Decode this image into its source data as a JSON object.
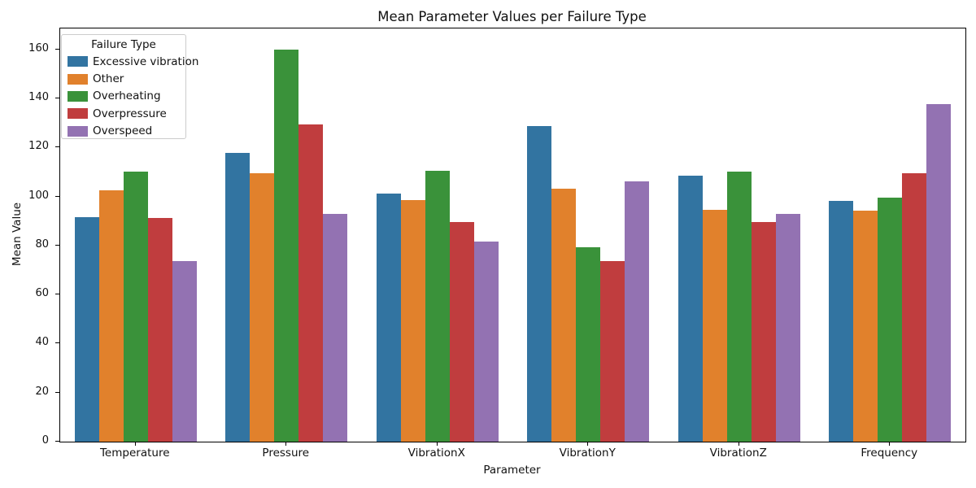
{
  "title": "Mean Parameter Values per Failure Type",
  "x_axis_label": "Parameter",
  "y_axis_label": "Mean Value",
  "legend": {
    "title": "Failure Type",
    "entries": [
      {
        "label": "Excessive vibration",
        "color": "#3274a1"
      },
      {
        "label": "Other",
        "color": "#e1812c"
      },
      {
        "label": "Overheating",
        "color": "#3a923a"
      },
      {
        "label": "Overpressure",
        "color": "#c03d3e"
      },
      {
        "label": "Overspeed",
        "color": "#9372b2"
      }
    ]
  },
  "chart_data": {
    "type": "bar",
    "title": "Mean Parameter Values per Failure Type",
    "xlabel": "Parameter",
    "ylabel": "Mean Value",
    "categories": [
      "Temperature",
      "Pressure",
      "VibrationX",
      "VibrationY",
      "VibrationZ",
      "Frequency"
    ],
    "series": [
      {
        "name": "Excessive vibration",
        "color": "#3274a1",
        "values": [
          91.4,
          117.7,
          101.3,
          128.7,
          108.5,
          98.3
        ]
      },
      {
        "name": "Other",
        "color": "#e1812c",
        "values": [
          102.5,
          109.6,
          98.4,
          103.0,
          94.7,
          94.2
        ]
      },
      {
        "name": "Overheating",
        "color": "#3a923a",
        "values": [
          110.0,
          160.0,
          110.5,
          79.2,
          110.2,
          99.4
        ]
      },
      {
        "name": "Overpressure",
        "color": "#c03d3e",
        "values": [
          91.1,
          129.3,
          89.5,
          73.7,
          89.7,
          109.3
        ]
      },
      {
        "name": "Overspeed",
        "color": "#9372b2",
        "values": [
          73.7,
          92.8,
          81.6,
          106.3,
          92.8,
          137.8
        ]
      }
    ],
    "ylim": [
      0,
      168.5
    ],
    "yticks": [
      0,
      20,
      40,
      60,
      80,
      100,
      120,
      140,
      160
    ],
    "grid": false,
    "legend_position": "upper left",
    "legend_title": "Failure Type"
  }
}
